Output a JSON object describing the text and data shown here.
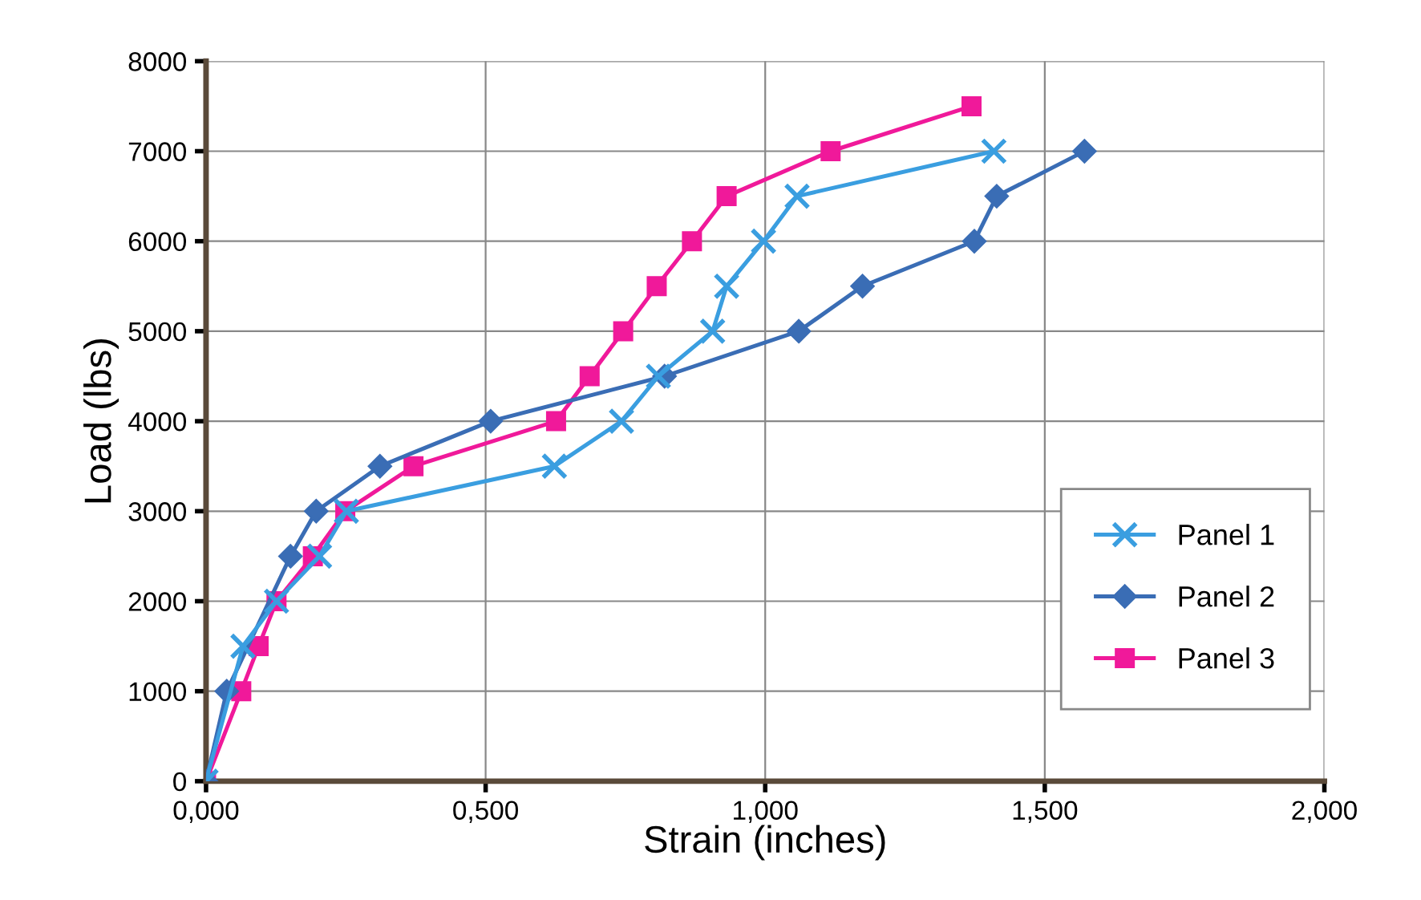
{
  "chart_data": {
    "type": "line",
    "xlabel": "Strain (inches)",
    "ylabel": "Load (lbs)",
    "xlim": [
      0,
      2
    ],
    "ylim": [
      0,
      8000
    ],
    "xticks": [
      {
        "value": 0,
        "label": "0,000"
      },
      {
        "value": 0.5,
        "label": "0,500"
      },
      {
        "value": 1,
        "label": "1,000"
      },
      {
        "value": 1.5,
        "label": "1,500"
      },
      {
        "value": 2,
        "label": "2,000"
      }
    ],
    "yticks": [
      0,
      1000,
      2000,
      3000,
      4000,
      5000,
      6000,
      7000,
      8000
    ],
    "grid": true,
    "legend": "lower right",
    "series": [
      {
        "name": "Panel 1",
        "color": "#3a9ee0",
        "marker": "cross",
        "x": [
          0,
          0.066,
          0.126,
          0.203,
          0.251,
          0.623,
          0.743,
          0.809,
          0.906,
          0.931,
          0.997,
          1.057,
          1.409
        ],
        "values": [
          0,
          1500,
          2000,
          2500,
          3000,
          3500,
          4000,
          4500,
          5000,
          5500,
          6000,
          6500,
          7000
        ]
      },
      {
        "name": "Panel 2",
        "color": "#3a6db5",
        "marker": "diamond",
        "x": [
          0,
          0.037,
          0.151,
          0.197,
          0.311,
          0.509,
          0.82,
          1.06,
          1.174,
          1.374,
          1.414,
          1.571
        ],
        "values": [
          0,
          1000,
          2500,
          3000,
          3500,
          4000,
          4500,
          5000,
          5500,
          6000,
          6500,
          7000
        ]
      },
      {
        "name": "Panel 3",
        "color": "#f0199a",
        "marker": "square",
        "x": [
          0,
          0.063,
          0.094,
          0.126,
          0.191,
          0.249,
          0.371,
          0.626,
          0.686,
          0.746,
          0.806,
          0.869,
          0.931,
          1.117,
          1.369
        ],
        "values": [
          0,
          1000,
          1500,
          2000,
          2500,
          3000,
          3500,
          4000,
          4500,
          5000,
          5500,
          6000,
          6500,
          7000,
          7500
        ]
      }
    ]
  }
}
